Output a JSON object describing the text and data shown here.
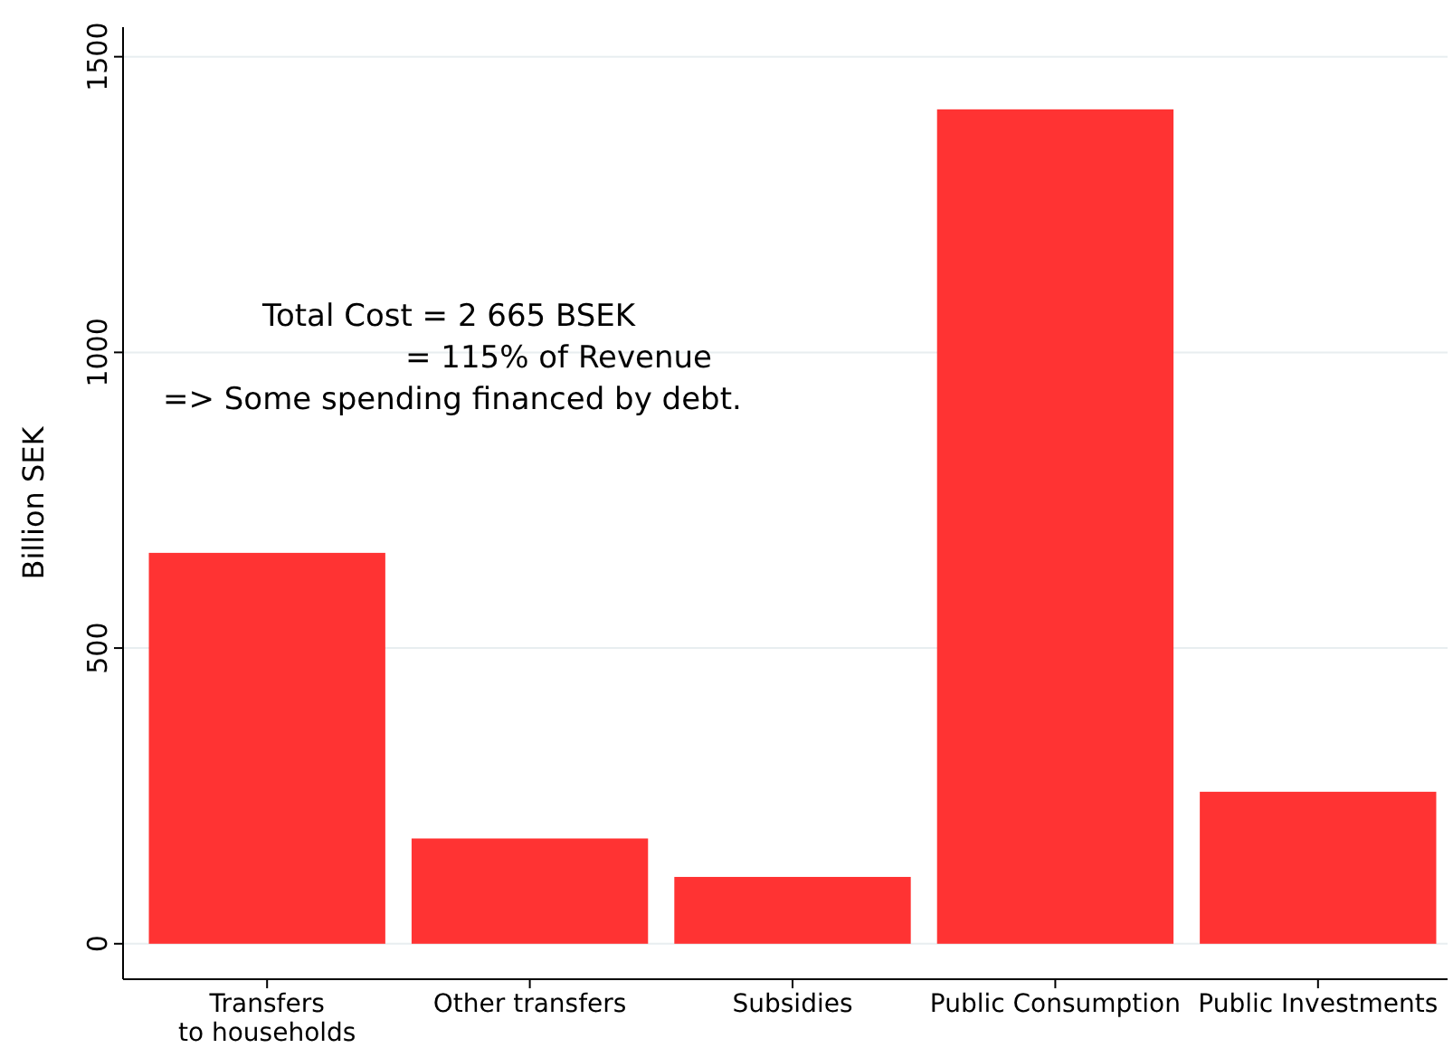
{
  "chart_data": {
    "type": "bar",
    "ylabel": "Billion SEK",
    "categories": [
      "Transfers\nto households",
      "Other transfers",
      "Subsidies",
      "Public Consumption",
      "Public Investments"
    ],
    "values": [
      661,
      178,
      113,
      1411,
      257
    ],
    "color": "#ff3333",
    "ylim": [
      -60,
      1550
    ],
    "yticks": [
      0,
      500,
      1000,
      1500
    ],
    "grid": "y",
    "annotations": [
      "Total Cost = 2 665 BSEK",
      "= 115% of Revenue",
      "=> Some spending financed by debt."
    ]
  }
}
